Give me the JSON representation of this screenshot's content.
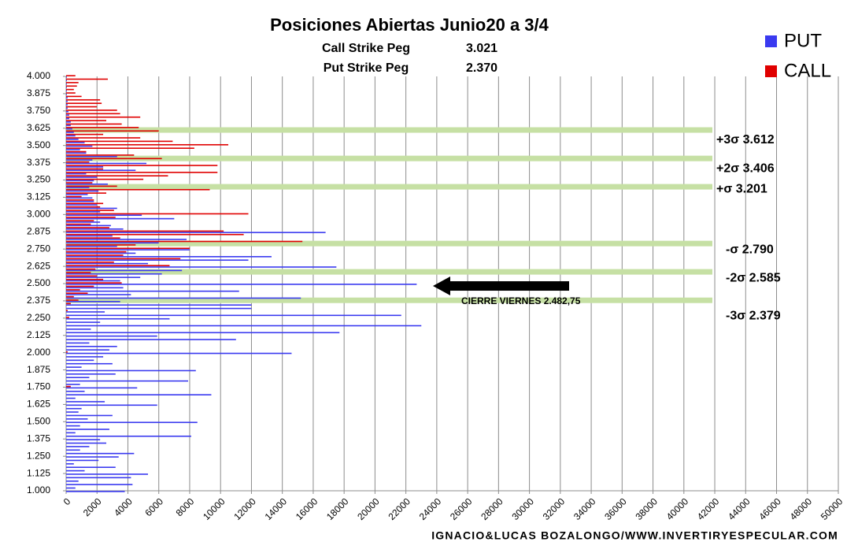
{
  "chart_data": {
    "type": "bar",
    "orientation": "horizontal",
    "title": "Posiciones Abiertas Junio20 a 3/4",
    "pegs": [
      {
        "label": "Call Strike Peg",
        "value": 3021,
        "value_label": "3.021"
      },
      {
        "label": "Put Strike Peg",
        "value": 2370,
        "value_label": "2.370"
      }
    ],
    "y": [
      1000,
      1025,
      1050,
      1075,
      1100,
      1125,
      1150,
      1175,
      1200,
      1225,
      1250,
      1275,
      1300,
      1325,
      1350,
      1375,
      1400,
      1425,
      1450,
      1475,
      1500,
      1525,
      1550,
      1575,
      1600,
      1625,
      1650,
      1675,
      1700,
      1725,
      1750,
      1775,
      1800,
      1825,
      1850,
      1875,
      1900,
      1925,
      1950,
      1975,
      2000,
      2025,
      2050,
      2075,
      2100,
      2125,
      2150,
      2175,
      2200,
      2225,
      2250,
      2275,
      2300,
      2325,
      2350,
      2375,
      2400,
      2425,
      2450,
      2475,
      2500,
      2525,
      2550,
      2575,
      2600,
      2625,
      2650,
      2675,
      2700,
      2725,
      2750,
      2775,
      2800,
      2825,
      2850,
      2875,
      2900,
      2925,
      2950,
      2975,
      3000,
      3025,
      3050,
      3075,
      3100,
      3125,
      3150,
      3175,
      3200,
      3225,
      3250,
      3275,
      3300,
      3325,
      3350,
      3375,
      3400,
      3425,
      3450,
      3475,
      3500,
      3525,
      3550,
      3575,
      3600,
      3625,
      3650,
      3675,
      3700,
      3725,
      3750,
      3775,
      3800,
      3825,
      3850,
      3875,
      3900,
      3925,
      3950,
      3975,
      4000
    ],
    "series": [
      {
        "name": "PUT",
        "color": "#3a3af0",
        "values": [
          3800,
          600,
          4300,
          800,
          4200,
          5300,
          1200,
          3200,
          500,
          2100,
          3400,
          4400,
          900,
          1500,
          2600,
          2200,
          8100,
          600,
          2800,
          900,
          8500,
          1400,
          3000,
          800,
          1000,
          5900,
          2500,
          600,
          9400,
          1200,
          4600,
          900,
          7900,
          1500,
          3200,
          8400,
          1000,
          3000,
          1800,
          2400,
          14600,
          2800,
          3300,
          1500,
          11000,
          5900,
          17700,
          1600,
          23000,
          2200,
          6700,
          21700,
          2500,
          12000,
          12000,
          3500,
          15200,
          4200,
          11200,
          3700,
          22700,
          3500,
          4800,
          6200,
          7500,
          17500,
          5300,
          11800,
          13300,
          4500,
          8000,
          3300,
          6000,
          7800,
          3000,
          16800,
          3700,
          2900,
          2200,
          7000,
          4900,
          2200,
          3300,
          2000,
          1800,
          1700,
          1400,
          2100,
          1500,
          2700,
          1800,
          2000,
          1300,
          4500,
          2400,
          5200,
          1700,
          3300,
          1300,
          900,
          1700,
          1200,
          800,
          600,
          500,
          400,
          300,
          300,
          200,
          200,
          150,
          100,
          100,
          100,
          100,
          50,
          50,
          50,
          50,
          50,
          50
        ]
      },
      {
        "name": "CALL",
        "color": "#e00000",
        "values": [
          0,
          0,
          0,
          0,
          0,
          0,
          0,
          0,
          0,
          0,
          0,
          0,
          0,
          0,
          0,
          0,
          0,
          0,
          0,
          0,
          0,
          0,
          0,
          0,
          0,
          0,
          0,
          0,
          0,
          0,
          300,
          0,
          0,
          0,
          0,
          0,
          0,
          0,
          0,
          0,
          100,
          0,
          0,
          0,
          0,
          0,
          0,
          0,
          0,
          0,
          200,
          0,
          100,
          0,
          300,
          800,
          500,
          1400,
          900,
          1800,
          3600,
          2400,
          2000,
          1600,
          1900,
          6700,
          3100,
          7400,
          3700,
          3900,
          8000,
          4500,
          15300,
          3500,
          11500,
          10200,
          2800,
          1600,
          1800,
          3200,
          11800,
          3100,
          2200,
          2400,
          1800,
          1000,
          2600,
          9300,
          3300,
          1700,
          5000,
          6600,
          9800,
          2400,
          9800,
          1500,
          6200,
          4400,
          1300,
          8300,
          10500,
          6900,
          4800,
          2400,
          6000,
          4700,
          3600,
          2600,
          4800,
          3500,
          3300,
          2000,
          2300,
          2200,
          1000,
          600,
          500,
          700,
          800,
          2700,
          600
        ]
      }
    ],
    "xlim": [
      0,
      50000
    ],
    "xticks": [
      0,
      2000,
      4000,
      6000,
      8000,
      10000,
      12000,
      14000,
      16000,
      18000,
      20000,
      22000,
      24000,
      26000,
      28000,
      30000,
      32000,
      34000,
      36000,
      38000,
      40000,
      42000,
      44000,
      46000,
      48000,
      50000
    ],
    "ylim": [
      1000,
      4000
    ],
    "yticks": [
      {
        "value": 1000,
        "label": "1.000"
      },
      {
        "value": 1125,
        "label": "1.125"
      },
      {
        "value": 1250,
        "label": "1.250"
      },
      {
        "value": 1375,
        "label": "1.375"
      },
      {
        "value": 1500,
        "label": "1.500"
      },
      {
        "value": 1625,
        "label": "1.625"
      },
      {
        "value": 1750,
        "label": "1.750"
      },
      {
        "value": 1875,
        "label": "1.875"
      },
      {
        "value": 2000,
        "label": "2.000"
      },
      {
        "value": 2125,
        "label": "2.125"
      },
      {
        "value": 2250,
        "label": "2.250"
      },
      {
        "value": 2375,
        "label": "2.375"
      },
      {
        "value": 2500,
        "label": "2.500"
      },
      {
        "value": 2625,
        "label": "2.625"
      },
      {
        "value": 2750,
        "label": "2.750"
      },
      {
        "value": 2875,
        "label": "2.875"
      },
      {
        "value": 3000,
        "label": "3.000"
      },
      {
        "value": 3125,
        "label": "3.125"
      },
      {
        "value": 3250,
        "label": "3.250"
      },
      {
        "value": 3375,
        "label": "3.375"
      },
      {
        "value": 3500,
        "label": "3.500"
      },
      {
        "value": 3625,
        "label": "3.625"
      },
      {
        "value": 3750,
        "label": "3.750"
      },
      {
        "value": 3875,
        "label": "3.875"
      },
      {
        "value": 4000,
        "label": "4.000"
      }
    ],
    "grid": true,
    "legend": "top-right",
    "sigma_levels": [
      {
        "value": 3612,
        "label": "+3σ 3.612"
      },
      {
        "value": 3406,
        "label": "+2σ 3.406"
      },
      {
        "value": 3201,
        "label": "+σ 3.201"
      },
      {
        "value": 2790,
        "label": "-σ 2.790"
      },
      {
        "value": 2585,
        "label": "-2σ 2.585"
      },
      {
        "value": 2379,
        "label": "-3σ 2.379"
      }
    ],
    "sigma_color": "#c6e0a4",
    "close_marker": {
      "value": 2482.75,
      "label": "CIERRE VIERNES 2.482,75"
    },
    "source": "IGNACIO&LUCAS BOZALONGO/WWW.INVERTIRYESPECULAR.COM"
  }
}
